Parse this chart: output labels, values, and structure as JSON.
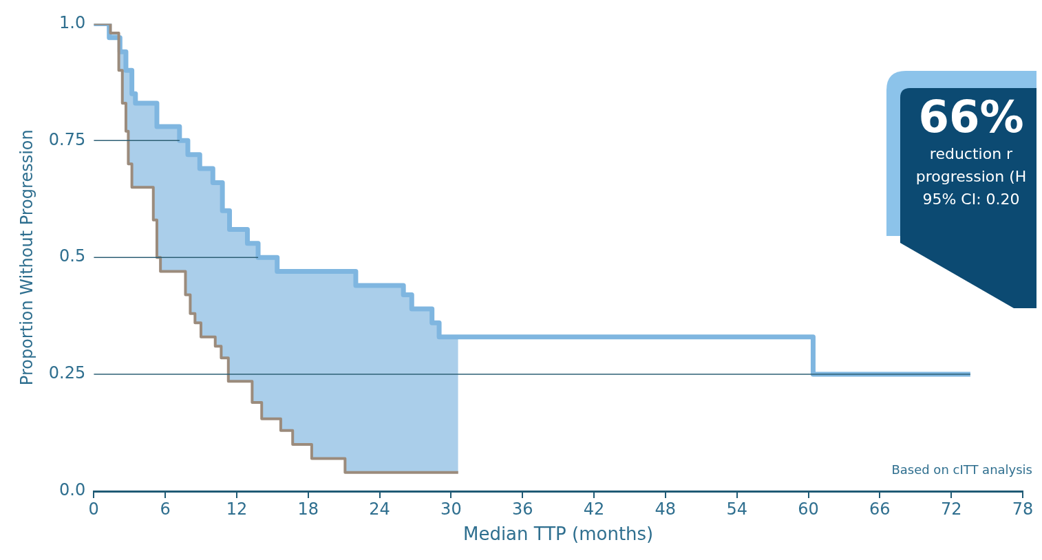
{
  "chart_data": {
    "type": "step",
    "xlabel": "Median TTP (months)",
    "ylabel": "Proportion Without Progression",
    "annotations": [
      "66%",
      "reduction r",
      "progression (H",
      "95% CI: 0.20",
      "Based on cITT analysis"
    ],
    "xlim": [
      0,
      78
    ],
    "xticks": [
      0,
      6,
      12,
      18,
      24,
      30,
      36,
      42,
      48,
      54,
      60,
      66,
      72,
      78
    ],
    "ylim": [
      0,
      1
    ],
    "yticks": [
      {
        "value": 0,
        "label": "0.0"
      },
      0.25,
      0.5,
      0.75,
      {
        "value": 1,
        "label": "1.0"
      }
    ],
    "grid": false,
    "legend": false,
    "series": [
      {
        "color": "#7fb6e0",
        "x": [
          0,
          1.3,
          1.4,
          2.1,
          2.2,
          2.4,
          2.7,
          2.9,
          3.2,
          3.5,
          5.0,
          5.3,
          5.6,
          7.2,
          7.7,
          7.9,
          8.1,
          8.5,
          8.9,
          9.0,
          10.0,
          10.2,
          10.7,
          10.8,
          11.3,
          11.4,
          12.9,
          13.3,
          13.8,
          14.1,
          15.4,
          15.7,
          16.7,
          18.3,
          21.1,
          22.0,
          26.0,
          26.7,
          28.4,
          29.0,
          30.6,
          60.4,
          73.6
        ],
        "values": [
          1.0,
          0.97,
          0.97,
          0.97,
          0.94,
          0.94,
          0.9,
          0.9,
          0.85,
          0.83,
          0.83,
          0.78,
          0.78,
          0.75,
          0.75,
          0.72,
          0.72,
          0.72,
          0.69,
          0.69,
          0.66,
          0.66,
          0.66,
          0.6,
          0.6,
          0.56,
          0.53,
          0.53,
          0.5,
          0.5,
          0.47,
          0.47,
          0.47,
          0.47,
          0.47,
          0.44,
          0.42,
          0.39,
          0.36,
          0.33,
          0.33,
          0.25,
          0.25
        ],
        "upper": [
          1.0,
          0.97,
          0.97,
          0.97,
          0.94,
          0.94,
          0.9,
          0.9,
          0.85,
          0.83,
          0.83,
          0.78,
          0.78,
          0.75,
          0.75,
          0.72,
          0.72,
          0.72,
          0.69,
          0.69,
          0.66,
          0.66,
          0.66,
          0.6,
          0.6,
          0.56,
          0.53,
          0.53,
          0.5,
          0.5,
          0.47,
          0.47,
          0.47,
          0.47,
          0.47,
          0.44,
          0.42,
          0.39,
          0.36,
          0.33,
          0.33,
          null,
          null
        ],
        "lower": [
          1.0,
          1.0,
          0.98,
          0.9,
          0.9,
          0.83,
          0.77,
          0.7,
          0.65,
          0.65,
          0.58,
          0.5,
          0.47,
          0.47,
          0.42,
          0.42,
          0.38,
          0.36,
          0.36,
          0.33,
          0.33,
          0.31,
          0.285,
          0.285,
          0.235,
          0.235,
          0.235,
          0.19,
          0.19,
          0.155,
          0.155,
          0.13,
          0.1,
          0.07,
          0.04,
          0.04,
          0.04,
          0.04,
          0.04,
          0.04,
          0.04,
          null,
          null
        ]
      },
      {
        "color": "#9b8b7c",
        "x": [
          0,
          1.4,
          2.1,
          2.4,
          2.7,
          2.9,
          3.2,
          5.0,
          5.3,
          5.6,
          7.7,
          8.1,
          8.5,
          9.0,
          10.2,
          10.7,
          11.3,
          13.3,
          14.1,
          15.7,
          16.7,
          18.3,
          21.1,
          30.6
        ],
        "values": [
          1.0,
          0.98,
          0.9,
          0.83,
          0.77,
          0.7,
          0.65,
          0.58,
          0.5,
          0.47,
          0.42,
          0.38,
          0.36,
          0.33,
          0.31,
          0.285,
          0.235,
          0.19,
          0.155,
          0.13,
          0.1,
          0.07,
          0.04,
          0.04
        ]
      },
      {
        "type": "line",
        "color": "#2d5f74",
        "x": [
          0,
          7.2
        ],
        "values": [
          0.75,
          0.75
        ]
      },
      {
        "type": "line",
        "color": "#2d5f74",
        "x": [
          0,
          13.8
        ],
        "values": [
          0.5,
          0.5
        ]
      },
      {
        "type": "line",
        "color": "#2d5f74",
        "x": [
          0,
          73.6
        ],
        "values": [
          0.25,
          0.25
        ]
      }
    ]
  }
}
